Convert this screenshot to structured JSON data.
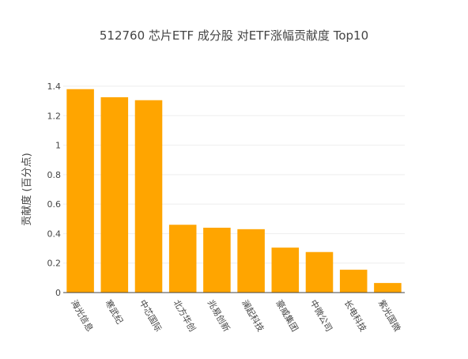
{
  "chart_data": {
    "type": "bar",
    "title": "512760 芯片ETF 成分股 对ETF涨幅贡献度 Top10",
    "xlabel": "",
    "ylabel": "贡献度 (百分点)",
    "categories": [
      "海光信息",
      "寒武纪",
      "中芯国际",
      "北方华创",
      "兆易创新",
      "澜起科技",
      "豪威集团",
      "中微公司",
      "长电科技",
      "紫光国微"
    ],
    "values": [
      1.38,
      1.325,
      1.305,
      0.46,
      0.44,
      0.43,
      0.305,
      0.275,
      0.155,
      0.065
    ],
    "ylim": [
      0,
      1.4
    ],
    "yticks": [
      0,
      0.2,
      0.4,
      0.6,
      0.8,
      1,
      1.2,
      1.4
    ],
    "ytick_labels": [
      "0",
      "0.2",
      "0.4",
      "0.6",
      "0.8",
      "1",
      "1.2",
      "1.4"
    ],
    "bar_color": "#FFA500",
    "grid": true,
    "legend": false
  }
}
